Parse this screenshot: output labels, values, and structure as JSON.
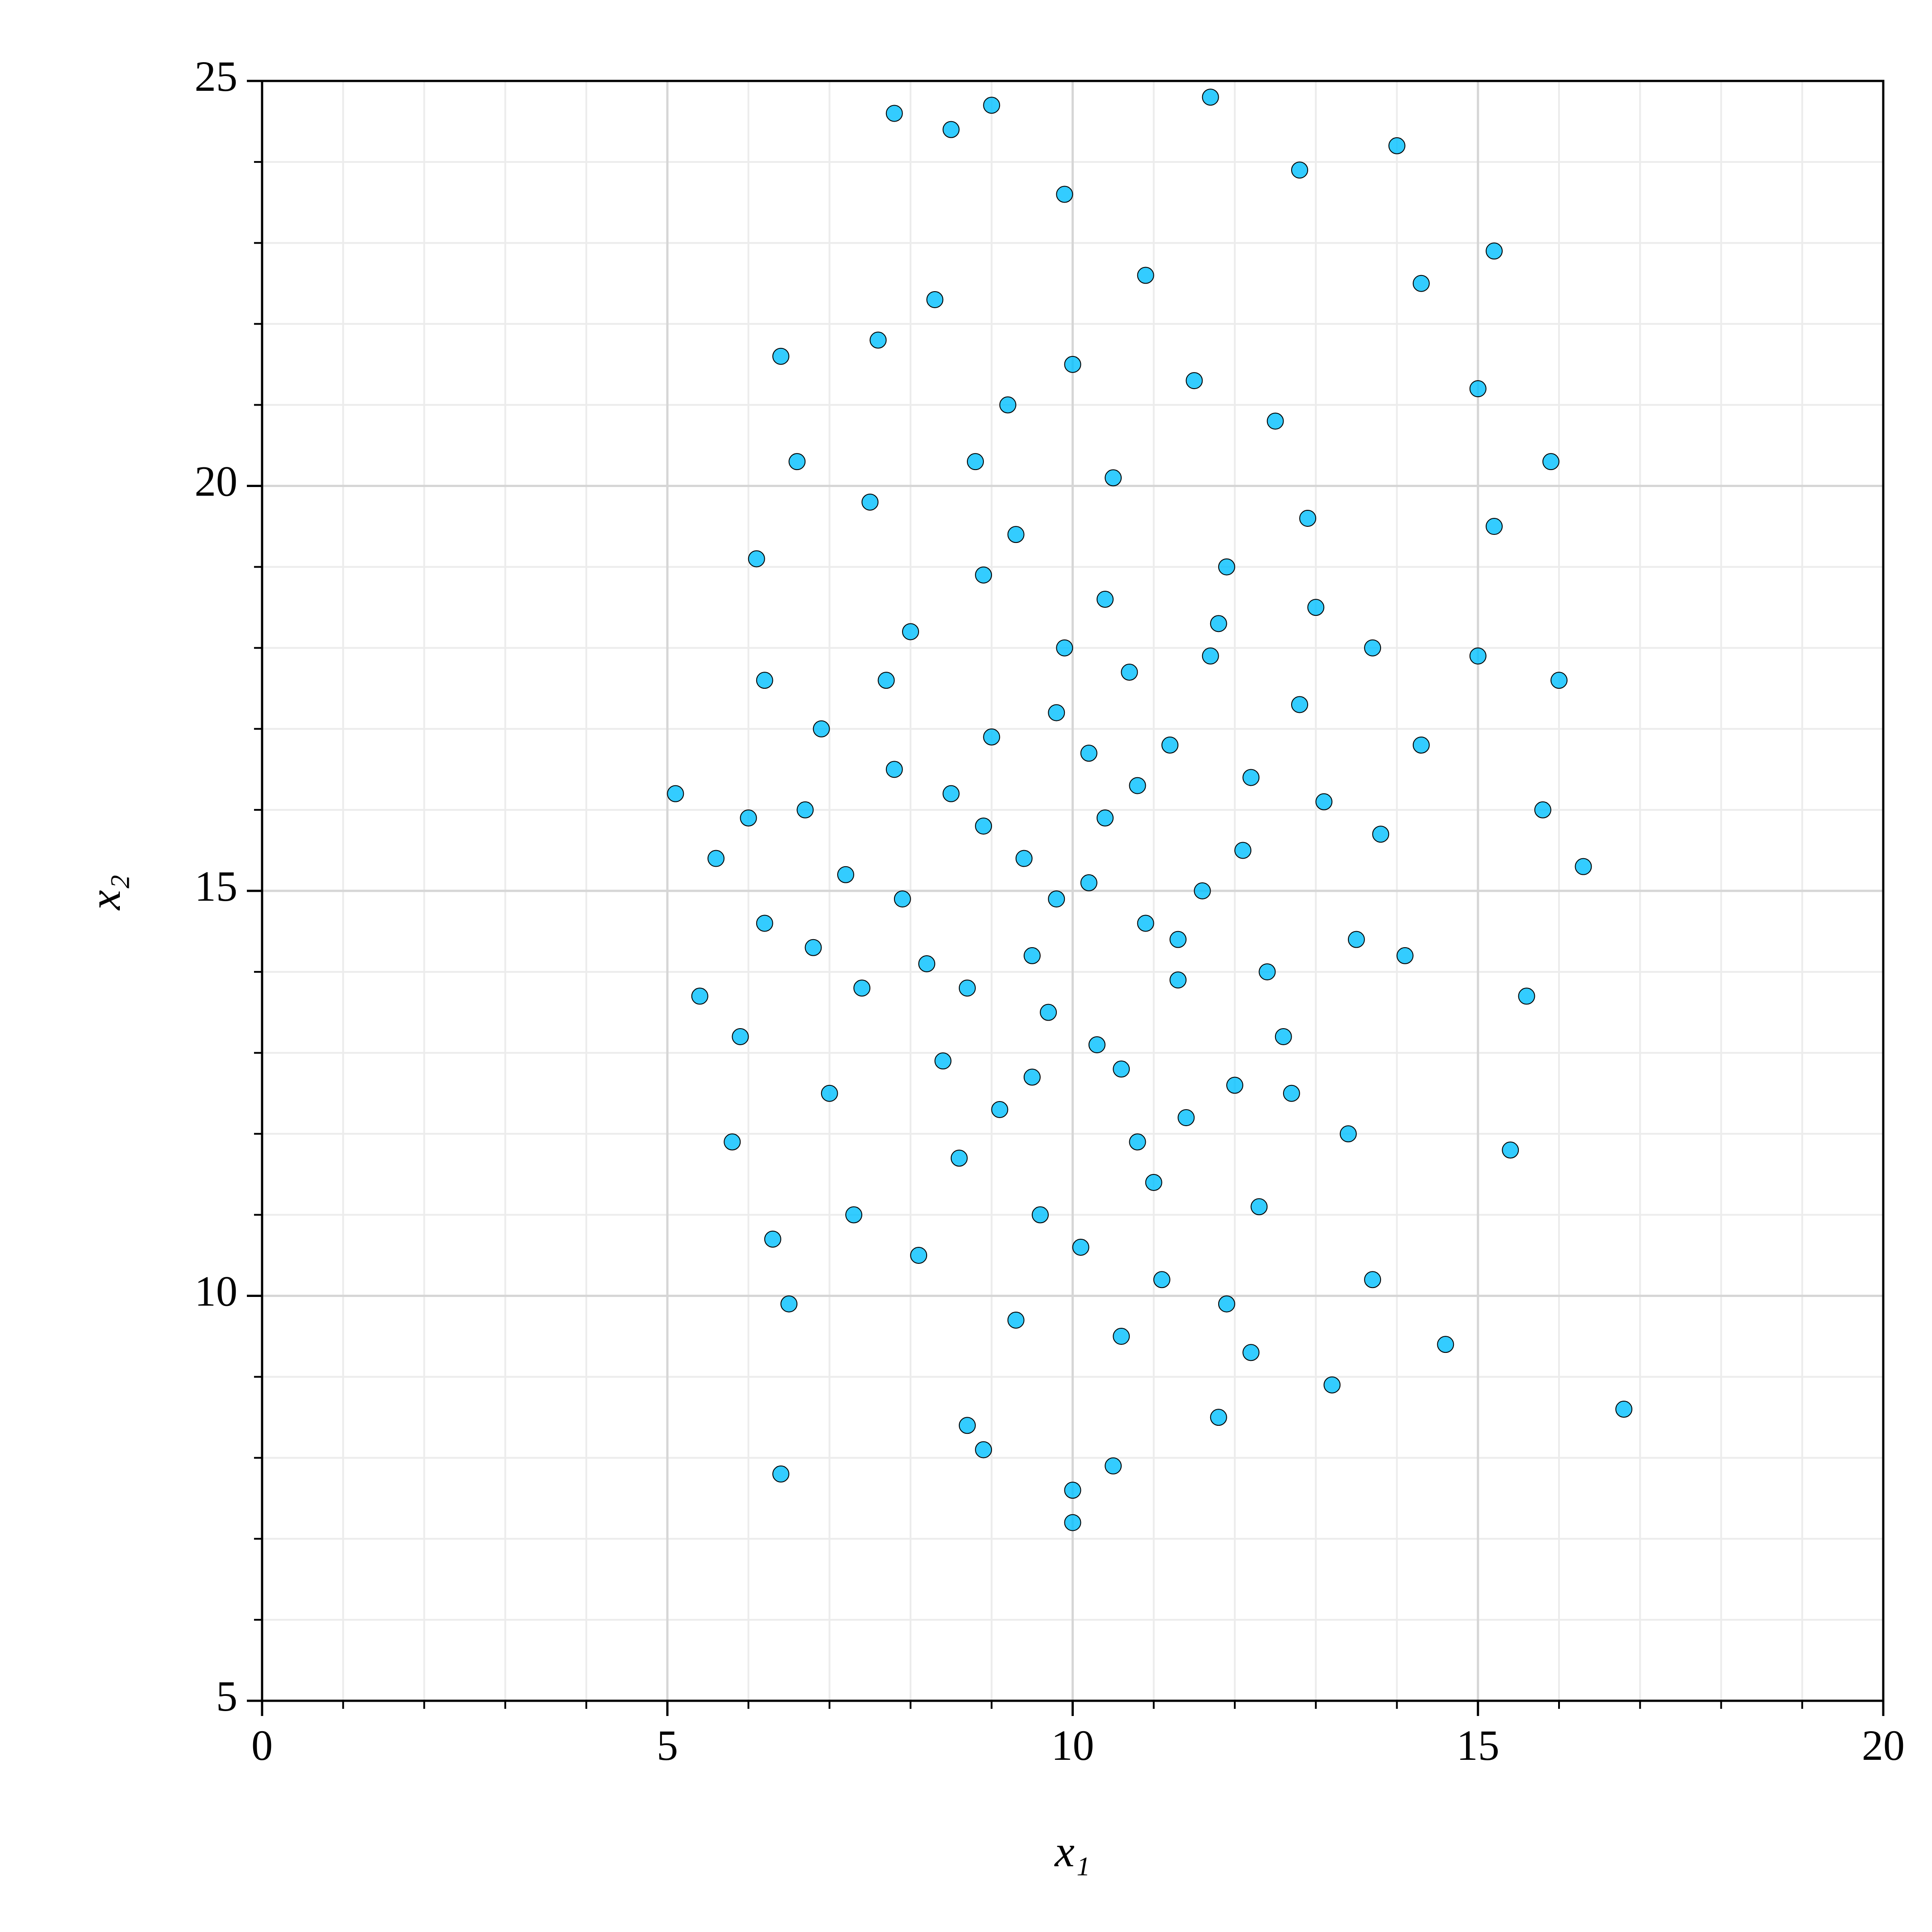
{
  "chart_data": {
    "type": "scatter",
    "x_label": "x₁",
    "y_label": "x₂",
    "xlim": [
      0,
      20
    ],
    "ylim": [
      5,
      25
    ],
    "xticks": [
      0,
      5,
      10,
      15,
      20
    ],
    "yticks": [
      5,
      10,
      15,
      20,
      25
    ],
    "minor_tick_step": 1,
    "grid": true,
    "color": "#00bfff",
    "edge_color": "#000000",
    "x": [
      5.1,
      5.4,
      5.6,
      5.8,
      5.9,
      6.4,
      6.4,
      7.8,
      8.5,
      9.0,
      11.7,
      14.0,
      15.2,
      15.9,
      16.0,
      16.3,
      16.8,
      15.4,
      14.6,
      10.0,
      10.0,
      10.5,
      15.6,
      15.8,
      15.0,
      14.3,
      9.9,
      12.8,
      6.5,
      8.9,
      13.2,
      13.7,
      15.2,
      15.0,
      6.1,
      6.2,
      6.0,
      6.2,
      6.3,
      6.6,
      7.6,
      11.8,
      8.7,
      12.2,
      10.2,
      9.5,
      10.8,
      11.3,
      8.9,
      9.8,
      10.6,
      12.1,
      8.2,
      11.7,
      9.1,
      10.4,
      12.6,
      7.8,
      11.0,
      9.3,
      13.1,
      8.6,
      10.9,
      9.7,
      11.9,
      7.4,
      12.8,
      10.1,
      8.0,
      13.5,
      9.0,
      11.4,
      7.2,
      12.3,
      10.5,
      8.4,
      13.0,
      9.6,
      11.2,
      7.7,
      12.4,
      8.8,
      10.3,
      11.6,
      9.4,
      10.7,
      8.5,
      12.0,
      7.0,
      13.8,
      9.9,
      11.1,
      8.1,
      12.9,
      10.0,
      9.2,
      11.5,
      7.5,
      13.4,
      14.1,
      6.8,
      6.9,
      10.6,
      9.3,
      11.9,
      8.3,
      10.9,
      12.5,
      7.3,
      14.3,
      13.7,
      6.7,
      10.4,
      9.8,
      11.3,
      10.2,
      8.7,
      12.2,
      9.5,
      11.8,
      8.9,
      10.8,
      12.7,
      7.9
    ],
    "values": [
      16.2,
      13.7,
      15.4,
      11.9,
      13.2,
      7.8,
      21.6,
      24.6,
      24.4,
      24.7,
      24.8,
      24.2,
      22.9,
      20.3,
      17.6,
      15.3,
      8.6,
      11.8,
      9.4,
      7.2,
      7.6,
      7.9,
      13.7,
      16.0,
      21.2,
      22.5,
      23.6,
      23.9,
      9.9,
      8.1,
      8.9,
      10.2,
      19.5,
      17.9,
      19.1,
      17.6,
      15.9,
      14.6,
      10.7,
      20.3,
      21.8,
      8.5,
      8.4,
      9.3,
      15.1,
      14.2,
      16.3,
      13.9,
      15.8,
      17.2,
      12.8,
      15.5,
      14.1,
      17.9,
      12.3,
      18.6,
      13.2,
      16.5,
      11.4,
      19.4,
      16.1,
      11.7,
      14.6,
      13.5,
      19.0,
      13.8,
      17.3,
      10.6,
      18.2,
      14.4,
      16.9,
      12.2,
      15.2,
      11.1,
      20.1,
      12.9,
      18.5,
      11.0,
      16.8,
      17.6,
      14.0,
      20.3,
      13.1,
      15.0,
      15.4,
      17.7,
      16.2,
      12.6,
      12.5,
      15.7,
      18.0,
      10.2,
      10.5,
      19.6,
      21.5,
      21.0,
      21.3,
      19.8,
      12.0,
      14.2,
      14.3,
      17.0,
      9.5,
      9.7,
      9.9,
      22.3,
      22.6,
      20.8,
      11.0,
      16.8,
      18.0,
      16.0,
      15.9,
      14.9,
      14.4,
      16.7,
      13.8,
      16.4,
      12.7,
      18.3,
      18.9,
      11.9,
      12.5,
      14.9
    ]
  }
}
